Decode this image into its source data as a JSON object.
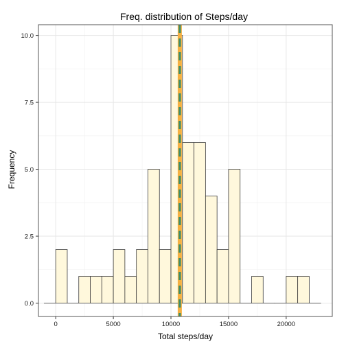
{
  "chart_data": {
    "type": "bar",
    "title": "Freq. distribution of Steps/day",
    "xlabel": "Total steps/day",
    "ylabel": "Frequency",
    "xlim": [
      -1500,
      24000
    ],
    "ylim": [
      -0.5,
      10.4
    ],
    "x_ticks": [
      0,
      5000,
      10000,
      15000,
      20000
    ],
    "x_tick_labels": [
      "0",
      "5000",
      "10000",
      "15000",
      "20000"
    ],
    "y_ticks": [
      0,
      2.5,
      5,
      7.5,
      10
    ],
    "y_tick_labels": [
      "0.0",
      "2.5",
      "5.0",
      "7.5",
      "10.0"
    ],
    "grid": true,
    "bin_width": 1000,
    "bins": [
      {
        "center": -500,
        "count": 0
      },
      {
        "center": 500,
        "count": 2
      },
      {
        "center": 1500,
        "count": 0
      },
      {
        "center": 2500,
        "count": 1
      },
      {
        "center": 3500,
        "count": 1
      },
      {
        "center": 4500,
        "count": 1
      },
      {
        "center": 5500,
        "count": 2
      },
      {
        "center": 6500,
        "count": 1
      },
      {
        "center": 7500,
        "count": 2
      },
      {
        "center": 8500,
        "count": 5
      },
      {
        "center": 9500,
        "count": 2
      },
      {
        "center": 10500,
        "count": 10
      },
      {
        "center": 11500,
        "count": 6
      },
      {
        "center": 12500,
        "count": 6
      },
      {
        "center": 13500,
        "count": 4
      },
      {
        "center": 14500,
        "count": 2
      },
      {
        "center": 15500,
        "count": 5
      },
      {
        "center": 16500,
        "count": 0
      },
      {
        "center": 17500,
        "count": 1
      },
      {
        "center": 18500,
        "count": 0
      },
      {
        "center": 19500,
        "count": 0
      },
      {
        "center": 20500,
        "count": 1
      },
      {
        "center": 21500,
        "count": 1
      },
      {
        "center": 22500,
        "count": 0
      }
    ],
    "vlines": [
      {
        "x": 10766,
        "color": "#f5b041",
        "style": "solid"
      },
      {
        "x": 10766,
        "color": "#3d8f6a",
        "style": "dashed"
      }
    ],
    "colors": {
      "bar_fill": "#fff8dc",
      "bar_stroke": "#3a3a3a",
      "grid_major": "#e6e6e6",
      "grid_minor": "#f3f3f3",
      "panel_border": "#555555"
    }
  }
}
